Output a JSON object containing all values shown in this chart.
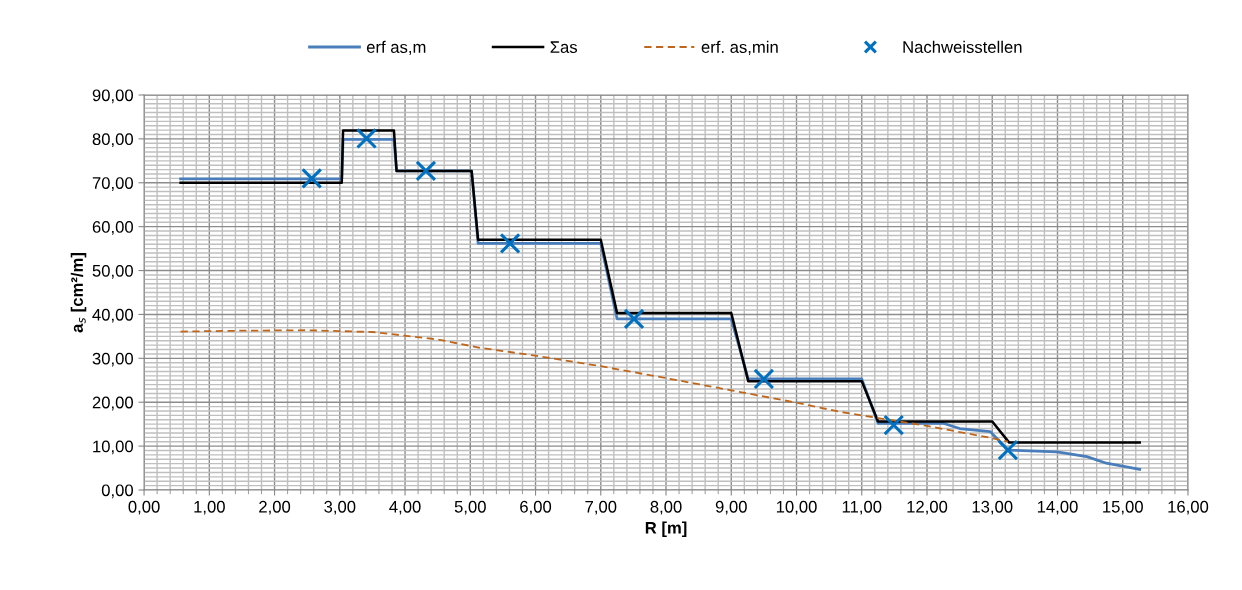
{
  "chart_data": {
    "type": "line",
    "xlabel": "R [m]",
    "ylabel": "a$_{s}$ [cm²/m]",
    "xlim": [
      0,
      16
    ],
    "ylim": [
      0,
      90
    ],
    "xticks": [
      {
        "value": 0,
        "label": "0,00"
      },
      {
        "value": 1,
        "label": "1,00"
      },
      {
        "value": 2,
        "label": "2,00"
      },
      {
        "value": 3,
        "label": "3,00"
      },
      {
        "value": 4,
        "label": "4,00"
      },
      {
        "value": 5,
        "label": "5,00"
      },
      {
        "value": 6,
        "label": "6,00"
      },
      {
        "value": 7,
        "label": "7,00"
      },
      {
        "value": 8,
        "label": "8,00"
      },
      {
        "value": 9,
        "label": "9,00"
      },
      {
        "value": 10,
        "label": "10,00"
      },
      {
        "value": 11,
        "label": "11,00"
      },
      {
        "value": 12,
        "label": "12,00"
      },
      {
        "value": 13,
        "label": "13,00"
      },
      {
        "value": 14,
        "label": "14,00"
      },
      {
        "value": 15,
        "label": "15,00"
      },
      {
        "value": 16,
        "label": "16,00"
      }
    ],
    "yticks": [
      {
        "value": 0,
        "label": "0,00"
      },
      {
        "value": 10,
        "label": "10,00"
      },
      {
        "value": 20,
        "label": "20,00"
      },
      {
        "value": 30,
        "label": "30,00"
      },
      {
        "value": 40,
        "label": "40,00"
      },
      {
        "value": 50,
        "label": "50,00"
      },
      {
        "value": 60,
        "label": "60,00"
      },
      {
        "value": 70,
        "label": "70,00"
      },
      {
        "value": 80,
        "label": "80,00"
      },
      {
        "value": 90,
        "label": "90,00"
      }
    ],
    "grid": true,
    "legend": "top",
    "series": [
      {
        "name": "erf as,m",
        "color": "#4a7ebb",
        "line_style": "solid",
        "marker": "none",
        "x": [
          0.56,
          3.03,
          3.05,
          3.83,
          3.87,
          5.02,
          5.12,
          7.0,
          7.25,
          9.0,
          9.26,
          11.0,
          11.25,
          12.25,
          12.5,
          12.97,
          13.24,
          13.99,
          14.45,
          14.75,
          15.26
        ],
        "values": [
          70.9,
          70.9,
          79.9,
          79.9,
          72.7,
          72.7,
          56.2,
          56.2,
          39.0,
          39.0,
          25.3,
          25.3,
          15.2,
          15.2,
          14.0,
          13.3,
          9.1,
          8.7,
          7.6,
          6.1,
          4.7
        ]
      },
      {
        "name": "Σas",
        "color": "#000000",
        "line_style": "solid",
        "marker": "none",
        "x": [
          0.56,
          3.03,
          3.05,
          3.83,
          3.87,
          5.02,
          5.12,
          7.0,
          7.25,
          9.0,
          9.26,
          11.0,
          11.25,
          13.0,
          13.26,
          15.26
        ],
        "values": [
          70.0,
          70.0,
          81.9,
          81.9,
          72.7,
          72.7,
          57.0,
          57.0,
          40.3,
          40.3,
          24.8,
          24.8,
          15.6,
          15.6,
          10.8,
          10.8
        ]
      },
      {
        "name": "erf. as,min",
        "color": "#c0661b",
        "line_style": "dashed",
        "marker": "none",
        "x": [
          0.56,
          1.5,
          2.5,
          3.5,
          4.5,
          5.15,
          6.0,
          7.0,
          8.0,
          9.0,
          10.0,
          10.67,
          11.25,
          12.0,
          13.0,
          13.24
        ],
        "values": [
          36.1,
          36.3,
          36.4,
          36.0,
          34.3,
          32.4,
          30.6,
          28.2,
          25.5,
          22.7,
          19.9,
          17.8,
          16.4,
          14.6,
          11.8,
          11.0
        ]
      },
      {
        "name": "Nachweisstellen",
        "type": "scatter",
        "color": "#0070c0",
        "marker": "cross",
        "x": [
          2.57,
          3.41,
          4.32,
          5.61,
          7.51,
          9.5,
          11.49,
          13.24
        ],
        "values": [
          71.0,
          80.1,
          72.7,
          56.2,
          39.0,
          25.3,
          14.8,
          9.1
        ]
      }
    ]
  }
}
